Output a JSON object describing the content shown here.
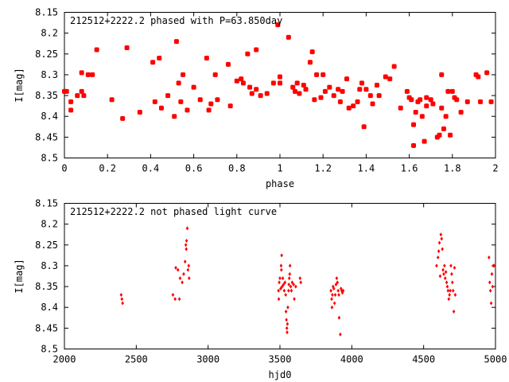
{
  "chart_data": [
    {
      "type": "scatter",
      "title": "212512+2222.2 phased with P=63.850day",
      "xlabel": "phase",
      "ylabel": "I[mag]",
      "xlim": [
        0,
        2
      ],
      "ylim": [
        8.15,
        8.5
      ],
      "y_inverted": true,
      "x_ticks": [
        "0",
        "0.2",
        "0.4",
        "0.6",
        "0.8",
        "1",
        "1.2",
        "1.4",
        "1.6",
        "1.8",
        "2"
      ],
      "y_ticks": [
        "8.15",
        "8.2",
        "8.25",
        "8.3",
        "8.35",
        "8.4",
        "8.45",
        "8.5"
      ],
      "marker": "filled-square",
      "color": "#ff0000",
      "series": [
        {
          "points": [
            [
              0.0,
              8.34
            ],
            [
              0.01,
              8.34
            ],
            [
              0.03,
              8.365
            ],
            [
              0.03,
              8.385
            ],
            [
              0.06,
              8.35
            ],
            [
              0.08,
              8.295
            ],
            [
              0.08,
              8.34
            ],
            [
              0.09,
              8.35
            ],
            [
              0.11,
              8.3
            ],
            [
              0.13,
              8.3
            ],
            [
              0.15,
              8.24
            ],
            [
              0.22,
              8.36
            ],
            [
              0.27,
              8.405
            ],
            [
              0.29,
              8.235
            ],
            [
              0.35,
              8.39
            ],
            [
              0.41,
              8.27
            ],
            [
              0.42,
              8.365
            ],
            [
              0.44,
              8.26
            ],
            [
              0.45,
              8.38
            ],
            [
              0.48,
              8.35
            ],
            [
              0.51,
              8.4
            ],
            [
              0.52,
              8.22
            ],
            [
              0.53,
              8.32
            ],
            [
              0.54,
              8.365
            ],
            [
              0.55,
              8.3
            ],
            [
              0.57,
              8.385
            ],
            [
              0.6,
              8.33
            ],
            [
              0.63,
              8.36
            ],
            [
              0.66,
              8.26
            ],
            [
              0.67,
              8.385
            ],
            [
              0.68,
              8.37
            ],
            [
              0.7,
              8.3
            ],
            [
              0.71,
              8.36
            ],
            [
              0.76,
              8.275
            ],
            [
              0.77,
              8.375
            ],
            [
              0.8,
              8.315
            ],
            [
              0.82,
              8.31
            ],
            [
              0.83,
              8.32
            ],
            [
              0.85,
              8.25
            ],
            [
              0.86,
              8.33
            ],
            [
              0.87,
              8.345
            ],
            [
              0.89,
              8.24
            ],
            [
              0.89,
              8.335
            ],
            [
              0.91,
              8.35
            ],
            [
              0.94,
              8.345
            ],
            [
              0.97,
              8.32
            ],
            [
              0.99,
              8.18
            ],
            [
              1.0,
              8.32
            ],
            [
              1.0,
              8.305
            ],
            [
              1.04,
              8.21
            ],
            [
              1.06,
              8.33
            ],
            [
              1.07,
              8.34
            ],
            [
              1.08,
              8.32
            ],
            [
              1.09,
              8.345
            ],
            [
              1.11,
              8.325
            ],
            [
              1.12,
              8.335
            ],
            [
              1.14,
              8.27
            ],
            [
              1.15,
              8.245
            ],
            [
              1.16,
              8.36
            ],
            [
              1.17,
              8.3
            ],
            [
              1.19,
              8.355
            ],
            [
              1.2,
              8.3
            ],
            [
              1.21,
              8.34
            ],
            [
              1.23,
              8.33
            ],
            [
              1.25,
              8.35
            ],
            [
              1.27,
              8.335
            ],
            [
              1.28,
              8.365
            ],
            [
              1.29,
              8.34
            ],
            [
              1.31,
              8.31
            ],
            [
              1.32,
              8.38
            ],
            [
              1.34,
              8.375
            ],
            [
              1.36,
              8.365
            ],
            [
              1.37,
              8.335
            ],
            [
              1.38,
              8.32
            ],
            [
              1.39,
              8.425
            ],
            [
              1.4,
              8.335
            ],
            [
              1.42,
              8.35
            ],
            [
              1.43,
              8.37
            ],
            [
              1.45,
              8.325
            ],
            [
              1.46,
              8.35
            ],
            [
              1.49,
              8.305
            ],
            [
              1.51,
              8.31
            ],
            [
              1.53,
              8.28
            ],
            [
              1.56,
              8.38
            ],
            [
              1.59,
              8.34
            ],
            [
              1.6,
              8.355
            ],
            [
              1.61,
              8.36
            ],
            [
              1.62,
              8.47
            ],
            [
              1.62,
              8.42
            ],
            [
              1.63,
              8.39
            ],
            [
              1.64,
              8.365
            ],
            [
              1.65,
              8.36
            ],
            [
              1.66,
              8.4
            ],
            [
              1.67,
              8.46
            ],
            [
              1.68,
              8.375
            ],
            [
              1.68,
              8.355
            ],
            [
              1.7,
              8.36
            ],
            [
              1.71,
              8.37
            ],
            [
              1.73,
              8.45
            ],
            [
              1.74,
              8.445
            ],
            [
              1.75,
              8.38
            ],
            [
              1.75,
              8.3
            ],
            [
              1.76,
              8.43
            ],
            [
              1.77,
              8.4
            ],
            [
              1.78,
              8.34
            ],
            [
              1.79,
              8.445
            ],
            [
              1.8,
              8.34
            ],
            [
              1.81,
              8.355
            ],
            [
              1.82,
              8.36
            ],
            [
              1.84,
              8.39
            ],
            [
              1.87,
              8.365
            ],
            [
              1.91,
              8.3
            ],
            [
              1.92,
              8.305
            ],
            [
              1.93,
              8.365
            ],
            [
              1.96,
              8.295
            ],
            [
              1.98,
              8.365
            ]
          ]
        }
      ]
    },
    {
      "type": "scatter",
      "title": "212512+2222.2 not phased light curve",
      "xlabel": "hjd0",
      "ylabel": "I[mag]",
      "xlim": [
        2000,
        5000
      ],
      "ylim": [
        8.15,
        8.5
      ],
      "y_inverted": true,
      "x_ticks": [
        "2000",
        "2500",
        "3000",
        "3500",
        "4000",
        "4500",
        "5000"
      ],
      "y_ticks": [
        "8.15",
        "8.2",
        "8.25",
        "8.3",
        "8.35",
        "8.4",
        "8.45",
        "8.5"
      ],
      "marker": "small-diamond",
      "color": "#ff0000",
      "series": [
        {
          "points": [
            [
              2395,
              8.37
            ],
            [
              2400,
              8.38
            ],
            [
              2405,
              8.39
            ],
            [
              2755,
              8.37
            ],
            [
              2770,
              8.38
            ],
            [
              2775,
              8.305
            ],
            [
              2790,
              8.31
            ],
            [
              2800,
              8.38
            ],
            [
              2805,
              8.33
            ],
            [
              2820,
              8.34
            ],
            [
              2830,
              8.32
            ],
            [
              2840,
              8.29
            ],
            [
              2845,
              8.25
            ],
            [
              2848,
              8.26
            ],
            [
              2850,
              8.24
            ],
            [
              2855,
              8.21
            ],
            [
              2860,
              8.31
            ],
            [
              2865,
              8.3
            ],
            [
              2868,
              8.33
            ],
            [
              3490,
              8.36
            ],
            [
              3492,
              8.38
            ],
            [
              3495,
              8.34
            ],
            [
              3500,
              8.33
            ],
            [
              3505,
              8.355
            ],
            [
              3508,
              8.3
            ],
            [
              3510,
              8.31
            ],
            [
              3512,
              8.275
            ],
            [
              3515,
              8.35
            ],
            [
              3520,
              8.33
            ],
            [
              3525,
              8.345
            ],
            [
              3530,
              8.36
            ],
            [
              3535,
              8.34
            ],
            [
              3540,
              8.37
            ],
            [
              3542,
              8.41
            ],
            [
              3545,
              8.43
            ],
            [
              3548,
              8.45
            ],
            [
              3550,
              8.46
            ],
            [
              3552,
              8.44
            ],
            [
              3555,
              8.4
            ],
            [
              3560,
              8.36
            ],
            [
              3562,
              8.345
            ],
            [
              3565,
              8.33
            ],
            [
              3568,
              8.32
            ],
            [
              3570,
              8.3
            ],
            [
              3575,
              8.35
            ],
            [
              3580,
              8.36
            ],
            [
              3585,
              8.34
            ],
            [
              3595,
              8.345
            ],
            [
              3600,
              8.38
            ],
            [
              3610,
              8.35
            ],
            [
              3640,
              8.33
            ],
            [
              3645,
              8.34
            ],
            [
              3855,
              8.36
            ],
            [
              3860,
              8.38
            ],
            [
              3862,
              8.4
            ],
            [
              3865,
              8.37
            ],
            [
              3870,
              8.35
            ],
            [
              3875,
              8.355
            ],
            [
              3880,
              8.39
            ],
            [
              3885,
              8.37
            ],
            [
              3890,
              8.345
            ],
            [
              3895,
              8.33
            ],
            [
              3900,
              8.34
            ],
            [
              3905,
              8.36
            ],
            [
              3910,
              8.37
            ],
            [
              3912,
              8.425
            ],
            [
              3920,
              8.465
            ],
            [
              3925,
              8.355
            ],
            [
              3930,
              8.36
            ],
            [
              3935,
              8.365
            ],
            [
              3940,
              8.36
            ],
            [
              4590,
              8.3
            ],
            [
              4600,
              8.28
            ],
            [
              4605,
              8.265
            ],
            [
              4610,
              8.245
            ],
            [
              4615,
              8.325
            ],
            [
              4620,
              8.225
            ],
            [
              4625,
              8.235
            ],
            [
              4630,
              8.26
            ],
            [
              4635,
              8.31
            ],
            [
              4640,
              8.32
            ],
            [
              4645,
              8.3
            ],
            [
              4650,
              8.33
            ],
            [
              4655,
              8.315
            ],
            [
              4660,
              8.34
            ],
            [
              4665,
              8.35
            ],
            [
              4670,
              8.36
            ],
            [
              4675,
              8.38
            ],
            [
              4680,
              8.37
            ],
            [
              4685,
              8.36
            ],
            [
              4690,
              8.3
            ],
            [
              4695,
              8.32
            ],
            [
              4700,
              8.34
            ],
            [
              4705,
              8.36
            ],
            [
              4710,
              8.41
            ],
            [
              4715,
              8.305
            ],
            [
              4720,
              8.37
            ],
            [
              4955,
              8.28
            ],
            [
              4960,
              8.34
            ],
            [
              4965,
              8.36
            ],
            [
              4970,
              8.39
            ],
            [
              4975,
              8.32
            ],
            [
              4980,
              8.35
            ],
            [
              4985,
              8.3
            ],
            [
              4990,
              8.3
            ]
          ]
        }
      ]
    }
  ]
}
